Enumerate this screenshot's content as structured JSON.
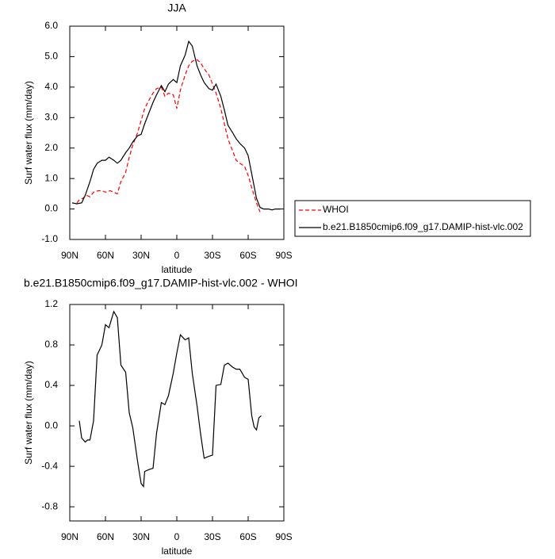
{
  "chart_data": [
    {
      "type": "line",
      "title": "JJA",
      "xlabel": "latitude",
      "ylabel": "Surf water flux (mm/day)",
      "xlim": [
        90,
        -90
      ],
      "xticks": [
        {
          "value": 90,
          "label": "90N"
        },
        {
          "value": 60,
          "label": "60N"
        },
        {
          "value": 30,
          "label": "30N"
        },
        0,
        {
          "value": -30,
          "label": "30S"
        },
        {
          "value": -60,
          "label": "60S"
        },
        {
          "value": -90,
          "label": "90S"
        }
      ],
      "ylim": [
        -1,
        6
      ],
      "yticks": [
        {
          "value": -1,
          "label": "-1.0"
        },
        {
          "value": 0,
          "label": "0.0"
        },
        {
          "value": 1,
          "label": "1.0"
        },
        {
          "value": 2,
          "label": "2.0"
        },
        {
          "value": 3,
          "label": "3.0"
        },
        {
          "value": 4,
          "label": "4.0"
        },
        {
          "value": 5,
          "label": "5.0"
        },
        {
          "value": 6,
          "label": "6.0"
        }
      ],
      "legend": "outside-right",
      "series": [
        {
          "name": "WHOI",
          "color": "#ff0000",
          "dash": true,
          "x": [
            84,
            82,
            79,
            76,
            73,
            70,
            66,
            63,
            60,
            56,
            53,
            50,
            47,
            43,
            40,
            37,
            33,
            30,
            27,
            23,
            20,
            17,
            13,
            10,
            7,
            3,
            0,
            -3,
            -7,
            -10,
            -13,
            -17,
            -20,
            -23,
            -27,
            -30,
            -33,
            -37,
            -40,
            -43,
            -47,
            -50,
            -53,
            -57,
            -60,
            -63,
            -67,
            -70
          ],
          "values": [
            0.2,
            0.3,
            0.35,
            0.45,
            0.4,
            0.55,
            0.6,
            0.6,
            0.55,
            0.6,
            0.55,
            0.5,
            0.9,
            1.2,
            1.7,
            2.1,
            2.5,
            2.9,
            3.3,
            3.6,
            3.8,
            3.95,
            4.0,
            3.7,
            3.8,
            3.75,
            3.3,
            3.9,
            4.4,
            4.7,
            4.85,
            4.9,
            4.8,
            4.6,
            4.4,
            4.1,
            3.8,
            3.3,
            2.8,
            2.3,
            1.9,
            1.6,
            1.5,
            1.4,
            1.1,
            0.7,
            0.2,
            -0.1
          ]
        },
        {
          "name": "b.e21.B1850cmip6.f09_g17.DAMIP-hist-vlc.002",
          "color": "#000000",
          "dash": false,
          "x": [
            88,
            84,
            80,
            77,
            73,
            70,
            67,
            63,
            60,
            57,
            53,
            50,
            47,
            43,
            40,
            37,
            33,
            30,
            27,
            23,
            20,
            17,
            13,
            10,
            7,
            3,
            0,
            -3,
            -7,
            -10,
            -13,
            -17,
            -20,
            -23,
            -27,
            -30,
            -33,
            -37,
            -40,
            -43,
            -47,
            -50,
            -53,
            -57,
            -60,
            -63,
            -67,
            -70,
            -73,
            -77,
            -80,
            -83,
            -87
          ],
          "values": [
            0.2,
            0.17,
            0.2,
            0.45,
            0.9,
            1.3,
            1.5,
            1.6,
            1.6,
            1.7,
            1.6,
            1.5,
            1.6,
            1.85,
            2.0,
            2.2,
            2.4,
            2.45,
            2.8,
            3.2,
            3.5,
            3.75,
            4.05,
            3.85,
            4.1,
            4.25,
            4.15,
            4.7,
            5.05,
            5.5,
            5.35,
            4.7,
            4.4,
            4.15,
            3.95,
            3.9,
            4.1,
            3.7,
            3.25,
            2.75,
            2.5,
            2.3,
            2.15,
            2.0,
            1.75,
            1.15,
            0.35,
            0.05,
            0.0,
            0.0,
            -0.03,
            0.0,
            0.0
          ]
        }
      ]
    },
    {
      "type": "line",
      "title": "b.e21.B1850cmip6.f09_g17.DAMIP-hist-vlc.002 - WHOI",
      "xlabel": "latitude",
      "ylabel": "Surf water flux (mm/day)",
      "xlim": [
        90,
        -90
      ],
      "xticks": [
        {
          "value": 90,
          "label": "90N"
        },
        {
          "value": 60,
          "label": "60N"
        },
        {
          "value": 30,
          "label": "30N"
        },
        0,
        {
          "value": -30,
          "label": "30S"
        },
        {
          "value": -60,
          "label": "60S"
        },
        {
          "value": -90,
          "label": "90S"
        }
      ],
      "ylim": [
        -0.94,
        1.2
      ],
      "yticks": [
        -0.8,
        -0.4,
        {
          "value": 0,
          "label": "0.0"
        },
        0.4,
        0.8,
        1.2
      ],
      "series": [
        {
          "color": "#000000",
          "dash": false,
          "x": [
            82,
            80,
            77,
            75,
            73,
            70,
            67,
            63,
            60,
            57,
            53,
            50,
            47,
            43,
            40,
            37,
            33,
            30,
            28,
            27,
            23,
            20,
            17,
            13,
            10,
            7,
            3,
            0,
            -3,
            -7,
            -10,
            -13,
            -17,
            -20,
            -23,
            -27,
            -30,
            -33,
            -37,
            -40,
            -43,
            -47,
            -50,
            -53,
            -57,
            -60,
            -63,
            -65,
            -67,
            -69,
            -71
          ],
          "values": [
            0.05,
            -0.12,
            -0.16,
            -0.14,
            -0.14,
            0.05,
            0.7,
            0.8,
            1.0,
            0.97,
            1.13,
            1.07,
            0.6,
            0.53,
            0.13,
            -0.02,
            -0.35,
            -0.57,
            -0.6,
            -0.45,
            -0.43,
            -0.42,
            -0.07,
            0.23,
            0.21,
            0.3,
            0.52,
            0.72,
            0.9,
            0.85,
            0.87,
            0.52,
            0.2,
            -0.08,
            -0.32,
            -0.3,
            -0.29,
            0.4,
            0.41,
            0.6,
            0.62,
            0.58,
            0.56,
            0.56,
            0.48,
            0.46,
            0.1,
            -0.01,
            -0.04,
            0.08,
            0.1
          ]
        }
      ]
    }
  ]
}
